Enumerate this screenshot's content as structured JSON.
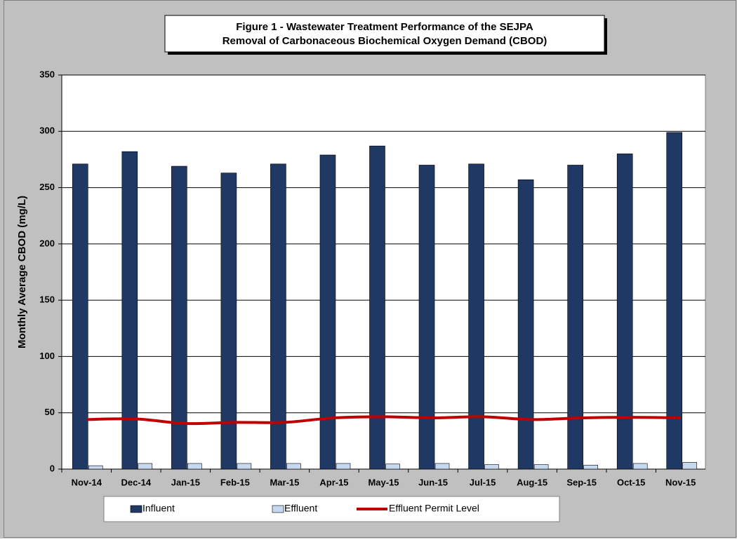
{
  "chart_data": {
    "type": "bar",
    "title": [
      "Figure 1 - Wastewater Treatment Performance of the SEJPA",
      "Removal of Carbonaceous Biochemical Oxygen Demand (CBOD)"
    ],
    "y_label": "Monthly Average CBOD (mg/L)",
    "categories": [
      "Nov-14",
      "Dec-14",
      "Jan-15",
      "Feb-15",
      "Mar-15",
      "Apr-15",
      "May-15",
      "Jun-15",
      "Jul-15",
      "Aug-15",
      "Sep-15",
      "Oct-15",
      "Nov-15"
    ],
    "series": [
      {
        "name": "Influent",
        "type": "bar",
        "color": "#1f3864",
        "values": [
          271,
          282,
          269,
          263,
          271,
          279,
          287,
          270,
          271,
          257,
          270,
          280,
          299
        ]
      },
      {
        "name": "Effluent",
        "type": "bar",
        "color": "#c6d9f1",
        "values": [
          3,
          5,
          5,
          5,
          5,
          5,
          4.5,
          5,
          4,
          4,
          3.5,
          5,
          6
        ]
      },
      {
        "name": "Effluent Permit Level",
        "type": "line",
        "color": "#c00000",
        "values": [
          44,
          44.5,
          40.5,
          41.5,
          41.5,
          45.5,
          46.5,
          45.5,
          46.5,
          44,
          45.5,
          46,
          45.5
        ]
      }
    ],
    "ylim": [
      0,
      350
    ],
    "yticks": [
      0,
      50,
      100,
      150,
      200,
      250,
      300,
      350
    ],
    "grid": true,
    "legend": "bottom"
  }
}
